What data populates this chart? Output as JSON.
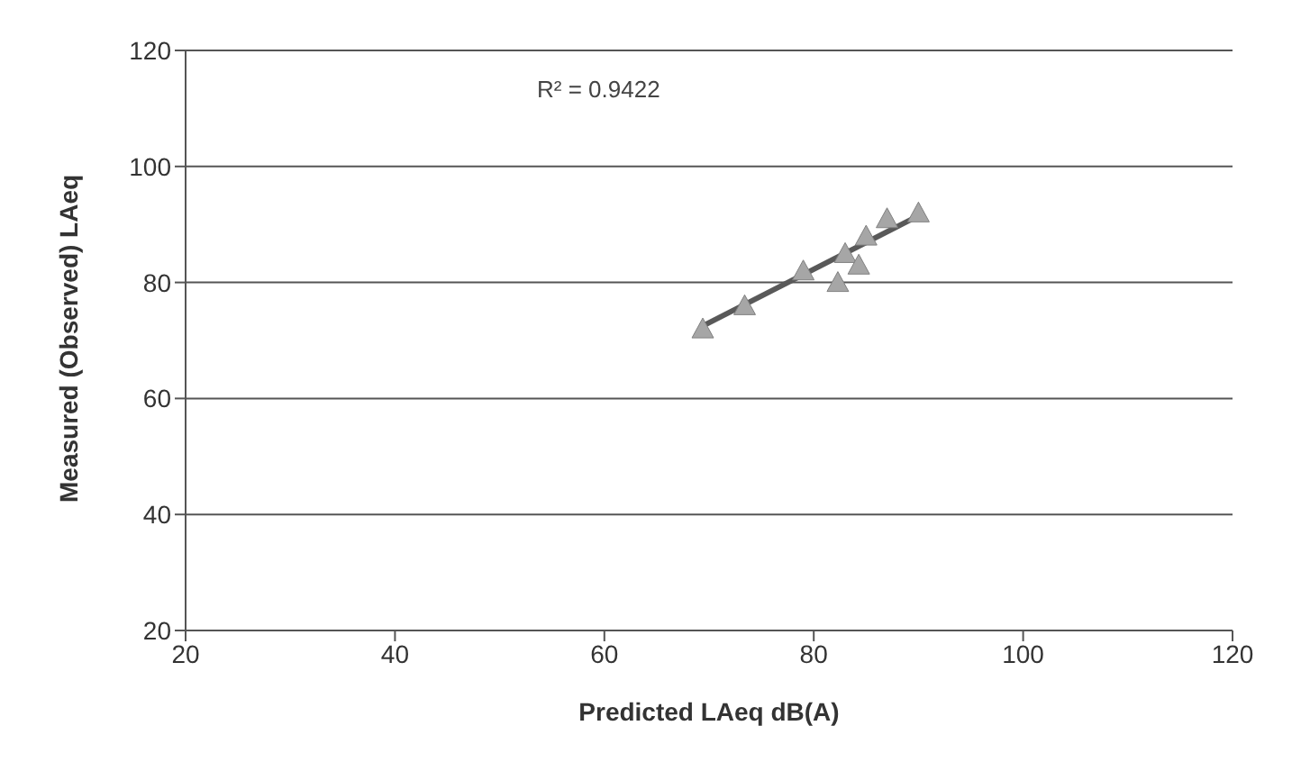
{
  "chart_data": {
    "type": "scatter",
    "xlabel": "Predicted LAeq dB(A)",
    "ylabel": "Measured (Observed) LAeq",
    "xlim": [
      20,
      120
    ],
    "xticks": [
      20,
      40,
      60,
      80,
      100,
      120
    ],
    "ylim": [
      20,
      120
    ],
    "yticks": [
      20,
      40,
      60,
      80,
      100,
      120
    ],
    "grid": "y",
    "marker": "triangle",
    "annotations": [
      "R² = 0.9422"
    ],
    "series": [
      {
        "color": "#a6a6a6",
        "x": [
          69.4,
          73.4,
          79,
          82.3,
          83,
          84.3,
          85,
          87,
          90
        ],
        "values": [
          72,
          76,
          82,
          80,
          85,
          83,
          88,
          91,
          92
        ]
      },
      {
        "type": "line",
        "color": "#595959",
        "marker": "none",
        "x": [
          69.4,
          90
        ],
        "values": [
          72.5,
          91.5
        ]
      }
    ]
  }
}
